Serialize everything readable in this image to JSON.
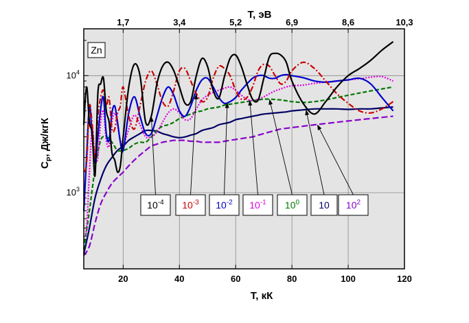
{
  "chart_data": {
    "type": "line",
    "element_label": "Zn",
    "xlabel": "T, кК",
    "ylabel": "Cp, Дж/кгК",
    "ylabel_parts": {
      "main": "C",
      "sub": "P",
      "rest": ", Дж/кгК"
    },
    "top_xlabel": "T, эВ",
    "x_ticks": [
      20,
      40,
      60,
      80,
      100,
      120
    ],
    "top_ticks": [
      "1,7",
      "3,4",
      "5,2",
      "6,9",
      "8,6",
      "10,3"
    ],
    "top_tick_positions_kK": [
      20,
      40,
      60,
      80,
      100,
      120
    ],
    "y_ticks": [
      {
        "label_base": "10",
        "label_exp": "3",
        "value": 1000
      },
      {
        "label_base": "10",
        "label_exp": "4",
        "value": 10000
      }
    ],
    "xlim": [
      6,
      120
    ],
    "ylim_log": [
      2.35,
      4.4
    ],
    "grid": true,
    "background": "#e4e4e4",
    "series": [
      {
        "name": "10^-4",
        "label_base": "10",
        "label_exp": "-4",
        "color": "#000000",
        "dash": "",
        "x": [
          6,
          7,
          8,
          9,
          10,
          11,
          12,
          13,
          14,
          15,
          16,
          17,
          18,
          19,
          20,
          22,
          24,
          26,
          28,
          30,
          32,
          34,
          36,
          38,
          40,
          42,
          44,
          46,
          48,
          50,
          52,
          54,
          56,
          58,
          60,
          62,
          64,
          66,
          68,
          70,
          72,
          74,
          76,
          78,
          80,
          84,
          88,
          92,
          96,
          100,
          104,
          108,
          112,
          116
        ],
        "y": [
          3800,
          8000,
          4000,
          3200,
          1400,
          7000,
          8500,
          9500,
          5000,
          4000,
          2200,
          1900,
          1500,
          1700,
          3000,
          8000,
          12500,
          10000,
          4000,
          4500,
          8500,
          12000,
          13000,
          11000,
          8000,
          5800,
          6000,
          10000,
          14000,
          12000,
          7500,
          6400,
          9800,
          14000,
          15000,
          12000,
          8500,
          6300,
          6200,
          9500,
          14500,
          15500,
          15000,
          13000,
          9000,
          5800,
          4700,
          6000,
          8000,
          10000,
          11500,
          13500,
          16500,
          19500
        ]
      },
      {
        "name": "10^-3",
        "label_base": "10",
        "label_exp": "-3",
        "color": "#cc0000",
        "dash": "8,3,2,3",
        "x": [
          6,
          7,
          8,
          9,
          10,
          11,
          12,
          13,
          14,
          15,
          16,
          17,
          18,
          19,
          20,
          22,
          24,
          26,
          28,
          30,
          32,
          34,
          36,
          38,
          40,
          42,
          44,
          46,
          48,
          50,
          52,
          54,
          56,
          58,
          60,
          62,
          64,
          66,
          68,
          70,
          72,
          74,
          76,
          78,
          80,
          84,
          88,
          92,
          96,
          100,
          104,
          108,
          112,
          116
        ],
        "y": [
          1500,
          1800,
          5500,
          3800,
          2000,
          4500,
          6500,
          7500,
          5500,
          6500,
          3500,
          3500,
          4800,
          5500,
          8000,
          4500,
          3500,
          5500,
          9000,
          11000,
          8500,
          6000,
          5500,
          7500,
          11000,
          11500,
          9000,
          7000,
          6000,
          6500,
          9500,
          12000,
          11500,
          10000,
          7500,
          6300,
          6500,
          8000,
          11000,
          12500,
          12000,
          10000,
          8500,
          9000,
          11000,
          13000,
          11500,
          9000,
          7000,
          5800,
          5000,
          4800,
          5200,
          6000
        ]
      },
      {
        "name": "10^-2",
        "label_base": "10",
        "label_exp": "-2",
        "color": "#0000cc",
        "dash": "",
        "x": [
          6,
          7,
          8,
          9,
          10,
          11,
          12,
          13,
          14,
          15,
          16,
          17,
          18,
          19,
          20,
          22,
          24,
          26,
          28,
          30,
          32,
          34,
          36,
          38,
          40,
          42,
          44,
          46,
          48,
          50,
          52,
          54,
          56,
          58,
          60,
          62,
          64,
          66,
          68,
          70,
          72,
          74,
          76,
          78,
          80,
          84,
          88,
          92,
          96,
          100,
          104,
          108,
          112,
          116
        ],
        "y": [
          700,
          2000,
          5500,
          3000,
          1800,
          3000,
          5200,
          6500,
          3200,
          2800,
          4800,
          5500,
          4000,
          2700,
          2300,
          4800,
          6600,
          4500,
          3200,
          3200,
          4500,
          6500,
          8000,
          6800,
          5000,
          4500,
          5500,
          7500,
          9200,
          9500,
          8000,
          6500,
          5800,
          6000,
          6500,
          7500,
          8500,
          9500,
          10000,
          10000,
          9500,
          9500,
          10000,
          10200,
          10000,
          9600,
          9000,
          8800,
          9000,
          9200,
          9500,
          8500,
          6500,
          5000
        ]
      },
      {
        "name": "10^-1",
        "label_base": "10",
        "label_exp": "-1",
        "color": "#dd00dd",
        "dash": "2,2",
        "x": [
          6,
          7,
          8,
          9,
          10,
          11,
          12,
          13,
          14,
          15,
          16,
          17,
          18,
          19,
          20,
          22,
          24,
          26,
          28,
          30,
          32,
          34,
          36,
          38,
          40,
          42,
          44,
          46,
          48,
          50,
          52,
          54,
          56,
          58,
          60,
          62,
          64,
          66,
          68,
          70,
          72,
          74,
          76,
          78,
          80,
          84,
          88,
          92,
          96,
          100,
          104,
          108,
          112,
          116
        ],
        "y": [
          420,
          500,
          1500,
          3500,
          2000,
          2000,
          4000,
          5000,
          2800,
          2500,
          4000,
          4800,
          3800,
          2800,
          2500,
          3500,
          4600,
          3800,
          3000,
          3000,
          3300,
          4000,
          4800,
          5200,
          4800,
          4200,
          4300,
          5200,
          6200,
          6800,
          7200,
          7500,
          7800,
          8000,
          7500,
          6800,
          6300,
          6100,
          6300,
          6600,
          7000,
          7400,
          7700,
          8000,
          8200,
          8300,
          8600,
          8800,
          9000,
          9200,
          9400,
          9700,
          9800,
          9000
        ]
      },
      {
        "name": "10^0",
        "label_base": "10",
        "label_exp": "0",
        "color": "#007700",
        "dash": "6,3",
        "x": [
          6,
          8,
          10,
          12,
          14,
          16,
          18,
          20,
          22,
          24,
          26,
          28,
          30,
          32,
          34,
          36,
          38,
          40,
          42,
          44,
          46,
          48,
          50,
          52,
          54,
          56,
          58,
          60,
          62,
          64,
          66,
          68,
          70,
          72,
          74,
          76,
          78,
          80,
          84,
          88,
          92,
          96,
          100,
          104,
          108,
          112,
          116
        ],
        "y": [
          330,
          700,
          1600,
          2800,
          3000,
          2700,
          2300,
          2300,
          2400,
          2600,
          2700,
          2700,
          3000,
          3400,
          3700,
          3800,
          4000,
          4300,
          4500,
          4700,
          4900,
          5000,
          5200,
          5300,
          5400,
          5600,
          5700,
          5800,
          5900,
          6000,
          6100,
          6200,
          6300,
          6300,
          6250,
          6200,
          6100,
          6000,
          5900,
          6000,
          6200,
          6500,
          6800,
          7100,
          7400,
          7700,
          8000
        ]
      },
      {
        "name": "10",
        "label_base": "10",
        "label_exp": "",
        "color": "#000066",
        "dash": "",
        "x": [
          6,
          8,
          10,
          12,
          14,
          16,
          18,
          20,
          22,
          24,
          26,
          28,
          30,
          32,
          34,
          36,
          38,
          40,
          42,
          44,
          46,
          48,
          50,
          52,
          54,
          56,
          58,
          60,
          62,
          64,
          66,
          68,
          70,
          72,
          74,
          76,
          78,
          80,
          84,
          88,
          92,
          96,
          100,
          104,
          108,
          112,
          116
        ],
        "y": [
          300,
          500,
          900,
          1300,
          1700,
          2000,
          2300,
          2500,
          2800,
          3000,
          3200,
          3400,
          3400,
          3350,
          3200,
          3100,
          3000,
          2950,
          3000,
          3100,
          3200,
          3400,
          3500,
          3600,
          3800,
          3900,
          4000,
          4200,
          4300,
          4400,
          4500,
          4600,
          4700,
          4750,
          4800,
          4850,
          4900,
          5000,
          5100,
          5200,
          5200,
          5200,
          5150,
          5200,
          5200,
          5300,
          5400
        ]
      },
      {
        "name": "10^2",
        "label_base": "10",
        "label_exp": "2",
        "color": "#8800cc",
        "dash": "9,4",
        "x": [
          6,
          8,
          10,
          12,
          14,
          16,
          18,
          20,
          22,
          24,
          26,
          28,
          30,
          32,
          34,
          36,
          38,
          40,
          42,
          44,
          46,
          48,
          50,
          52,
          54,
          56,
          58,
          60,
          62,
          64,
          66,
          68,
          70,
          72,
          74,
          76,
          78,
          80,
          84,
          88,
          92,
          96,
          100,
          104,
          108,
          112,
          116
        ],
        "y": [
          290,
          350,
          550,
          800,
          1000,
          1200,
          1350,
          1500,
          1700,
          1900,
          2100,
          2300,
          2500,
          2600,
          2700,
          2750,
          2800,
          2800,
          2800,
          2750,
          2750,
          2700,
          2700,
          2700,
          2700,
          2750,
          2800,
          2850,
          2900,
          2950,
          3000,
          3100,
          3200,
          3300,
          3400,
          3500,
          3550,
          3600,
          3700,
          3800,
          3900,
          4000,
          4100,
          4200,
          4300,
          4400,
          4500
        ]
      }
    ],
    "annotations": [
      {
        "series": "10^-4",
        "box_index": 0,
        "target_x": 30
      },
      {
        "series": "10^-3",
        "box_index": 1,
        "target_x": 46
      },
      {
        "series": "10^-2",
        "box_index": 2,
        "target_x": 57
      },
      {
        "series": "10^-1",
        "box_index": 3,
        "target_x": 65
      },
      {
        "series": "10^0",
        "box_index": 4,
        "target_x": 72
      },
      {
        "series": "10",
        "box_index": 5,
        "target_x": 85
      },
      {
        "series": "10^2",
        "box_index": 6,
        "target_x": 89
      }
    ]
  }
}
